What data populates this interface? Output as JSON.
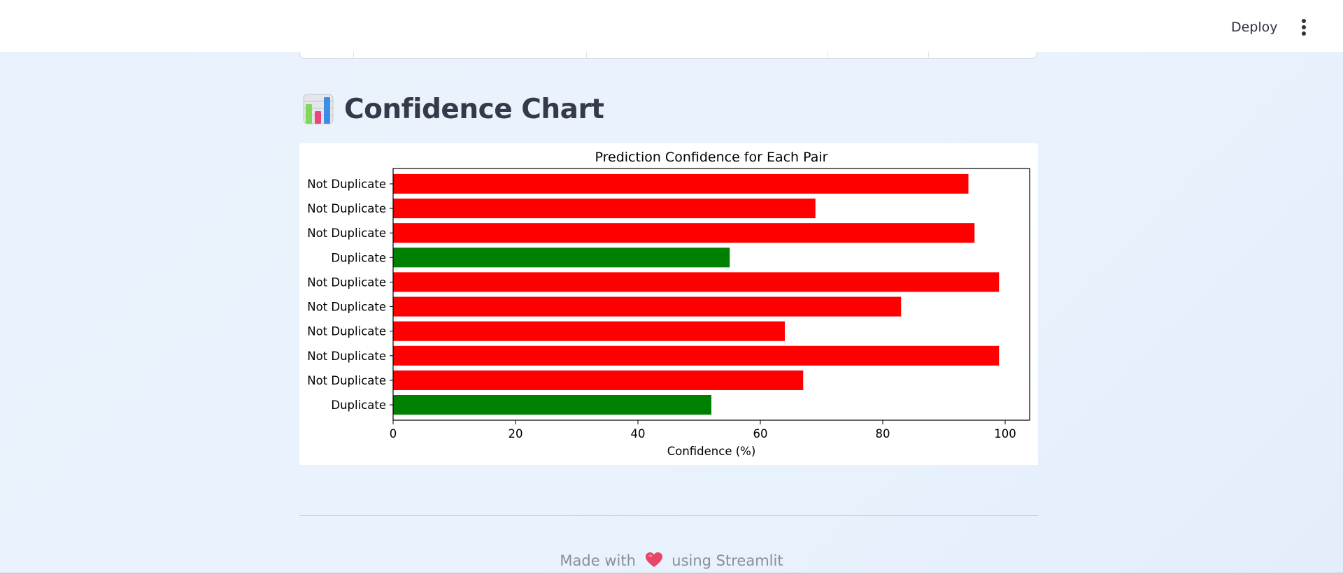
{
  "header": {
    "deploy_label": "Deploy",
    "menu_icon": "vertical-ellipsis-icon"
  },
  "section": {
    "icon": "bar-chart-icon",
    "title": "Confidence Chart"
  },
  "chart_data": {
    "type": "bar",
    "orientation": "horizontal",
    "title": "Prediction Confidence for Each Pair",
    "xlabel": "Confidence (%)",
    "ylabel": "",
    "xlim": [
      0,
      104
    ],
    "xticks": [
      0,
      20,
      40,
      60,
      80,
      100
    ],
    "grid": false,
    "categories": [
      "Not Duplicate",
      "Not Duplicate",
      "Not Duplicate",
      "Duplicate",
      "Not Duplicate",
      "Not Duplicate",
      "Not Duplicate",
      "Not Duplicate",
      "Not Duplicate",
      "Duplicate"
    ],
    "values": [
      94,
      69,
      95,
      55,
      99,
      83,
      64,
      99,
      67,
      52
    ],
    "colors": {
      "Not Duplicate": "#ff0000",
      "Duplicate": "#008000"
    }
  },
  "footer": {
    "prefix": "Made with",
    "icon": "heart-icon",
    "suffix": "using Streamlit"
  }
}
